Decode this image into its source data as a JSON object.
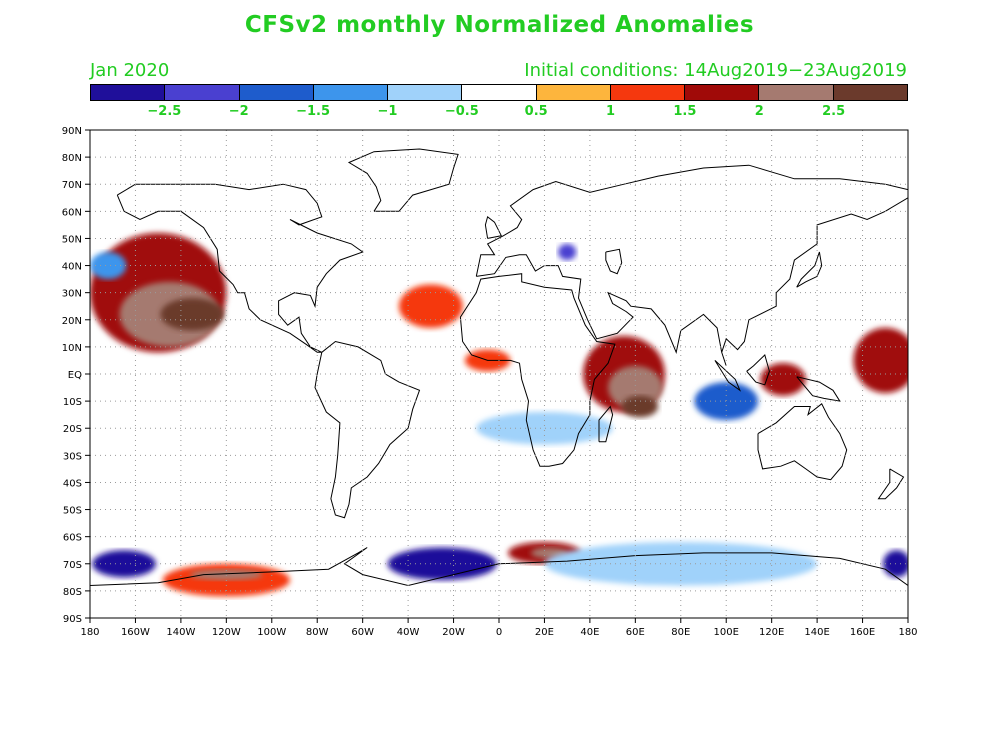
{
  "title": "CFSv2 monthly Normalized Anomalies",
  "month_label": "Jan 2020",
  "init_label": "Initial conditions: 14Aug2019−23Aug2019",
  "colorbar": {
    "colors": [
      "#1f0f9a",
      "#4a40d0",
      "#1e5ccc",
      "#3d95ec",
      "#a0d2fa",
      "#ffffff",
      "#fdb53d",
      "#f5380e",
      "#a00a08",
      "#a57a70",
      "#6b3a2c"
    ],
    "labels": [
      "−2.5",
      "−2",
      "−1.5",
      "−1",
      "−0.5",
      "0.5",
      "1",
      "1.5",
      "2",
      "2.5"
    ]
  },
  "axes": {
    "x_labels": [
      "180",
      "160W",
      "140W",
      "120W",
      "100W",
      "80W",
      "60W",
      "40W",
      "20W",
      "0",
      "20E",
      "40E",
      "60E",
      "80E",
      "100E",
      "120E",
      "140E",
      "160E",
      "180"
    ],
    "y_labels": [
      "90N",
      "80N",
      "70N",
      "60N",
      "50N",
      "40N",
      "30N",
      "20N",
      "10N",
      "EQ",
      "10S",
      "20S",
      "30S",
      "40S",
      "50S",
      "60S",
      "70S",
      "80S",
      "90S"
    ]
  },
  "anomalies": [
    {
      "lon": -150,
      "lat": 30,
      "rx": 30,
      "ry": 22,
      "level": 8
    },
    {
      "lon": -145,
      "lat": 22,
      "rx": 22,
      "ry": 12,
      "level": 9
    },
    {
      "lon": -135,
      "lat": 22,
      "rx": 14,
      "ry": 6,
      "level": 10
    },
    {
      "lon": -172,
      "lat": 40,
      "rx": 8,
      "ry": 5,
      "level": 3
    },
    {
      "lon": -30,
      "lat": 25,
      "rx": 14,
      "ry": 8,
      "level": 7
    },
    {
      "lon": 55,
      "lat": 0,
      "rx": 18,
      "ry": 14,
      "level": 8
    },
    {
      "lon": 60,
      "lat": -5,
      "rx": 12,
      "ry": 8,
      "level": 9
    },
    {
      "lon": 62,
      "lat": -12,
      "rx": 8,
      "ry": 4,
      "level": 10
    },
    {
      "lon": 100,
      "lat": -10,
      "rx": 14,
      "ry": 7,
      "level": 2
    },
    {
      "lon": 125,
      "lat": -2,
      "rx": 10,
      "ry": 6,
      "level": 8
    },
    {
      "lon": 170,
      "lat": 5,
      "rx": 14,
      "ry": 12,
      "level": 8
    },
    {
      "lon": -5,
      "lat": 5,
      "rx": 10,
      "ry": 4,
      "level": 7
    },
    {
      "lon": 30,
      "lat": 45,
      "rx": 4,
      "ry": 3,
      "level": 1
    },
    {
      "lon": -25,
      "lat": -70,
      "rx": 24,
      "ry": 6,
      "level": 0
    },
    {
      "lon": 20,
      "lat": -66,
      "rx": 16,
      "ry": 4,
      "level": 8
    },
    {
      "lon": 22,
      "lat": -66,
      "rx": 8,
      "ry": 2,
      "level": 9
    },
    {
      "lon": -120,
      "lat": -76,
      "rx": 28,
      "ry": 6,
      "level": 7
    },
    {
      "lon": -120,
      "lat": -74,
      "rx": 16,
      "ry": 2,
      "level": 9
    },
    {
      "lon": 80,
      "lat": -70,
      "rx": 60,
      "ry": 8,
      "level": 4
    },
    {
      "lon": -165,
      "lat": -70,
      "rx": 14,
      "ry": 5,
      "level": 0
    },
    {
      "lon": 175,
      "lat": -70,
      "rx": 6,
      "ry": 5,
      "level": 0
    },
    {
      "lon": 20,
      "lat": -20,
      "rx": 30,
      "ry": 6,
      "level": 4
    }
  ]
}
